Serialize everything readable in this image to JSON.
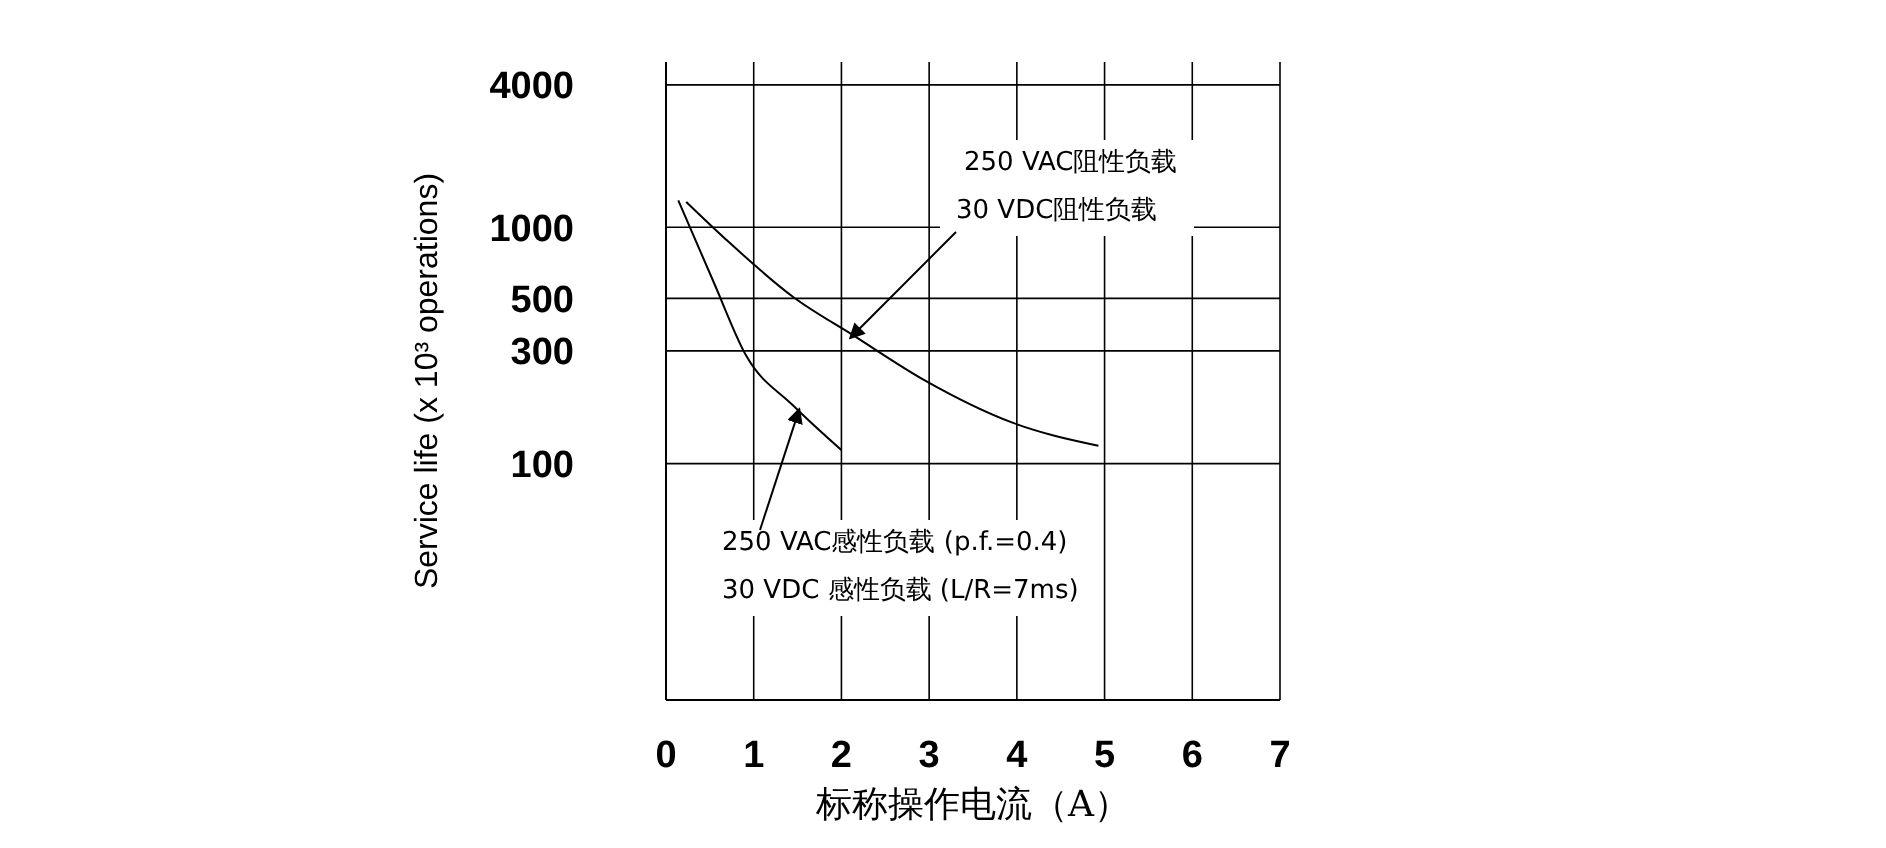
{
  "chart_data": {
    "type": "line",
    "xlabel": "标称操作电流（A）",
    "ylabel": "Service life (x 10³ operations)",
    "log": "y",
    "xlim": [
      0,
      7
    ],
    "xticks": [
      0,
      1,
      2,
      3,
      4,
      5,
      6,
      7
    ],
    "ylim": [
      10,
      5000
    ],
    "yticks": [
      100,
      300,
      500,
      1000,
      4000
    ],
    "grid": true,
    "legend": false,
    "marker": "none",
    "line_style": "solid",
    "series": [
      {
        "color": "#000000",
        "x": [
          0.23,
          0.68,
          1.45,
          2.14,
          2.95,
          3.95,
          4.93
        ],
        "values": [
          1280,
          890,
          507,
          348,
          225,
          149,
          119
        ]
      },
      {
        "color": "#000000",
        "x": [
          0.14,
          0.55,
          0.91,
          1.45,
          2.0
        ],
        "values": [
          1300,
          578,
          288,
          176,
          114
        ]
      }
    ],
    "annotations": [
      "250 VAC阻性负载",
      {
        "text": "30 VDC阻性负载",
        "x": 2.1,
        "y": 340
      },
      {
        "text": "250 VAC感性负载 (p.f.=0.4)",
        "x": 1.52,
        "y": 170
      },
      "30 VDC 感性负载 (L/R=7ms)"
    ]
  }
}
